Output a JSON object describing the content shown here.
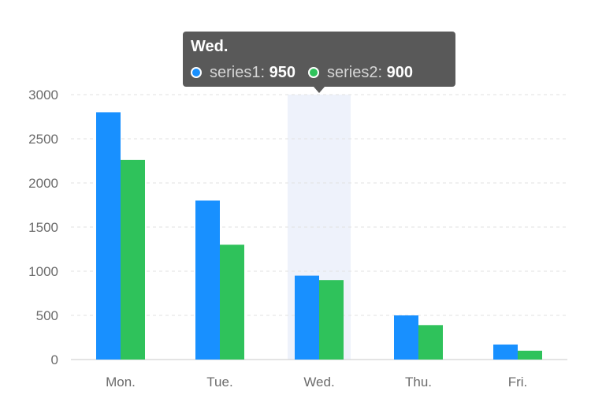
{
  "chart_data": {
    "type": "bar",
    "categories": [
      "Mon.",
      "Tue.",
      "Wed.",
      "Thu.",
      "Fri."
    ],
    "series": [
      {
        "name": "series1",
        "values": [
          2800,
          1800,
          950,
          500,
          170
        ],
        "color": "#1890ff"
      },
      {
        "name": "series2",
        "values": [
          2260,
          1300,
          900,
          390,
          100
        ],
        "color": "#2fc25b"
      }
    ],
    "ylim": [
      0,
      3000
    ],
    "y_ticks": [
      "0",
      "500",
      "1000",
      "1500",
      "2000",
      "2500",
      "3000"
    ],
    "grid": true,
    "highlighted_category": "Wed.",
    "highlight_color": "#eef2fb",
    "tooltip": {
      "title": "Wed.",
      "items": [
        {
          "name": "series1",
          "value": "950"
        },
        {
          "name": "series2",
          "value": "900"
        }
      ]
    }
  }
}
